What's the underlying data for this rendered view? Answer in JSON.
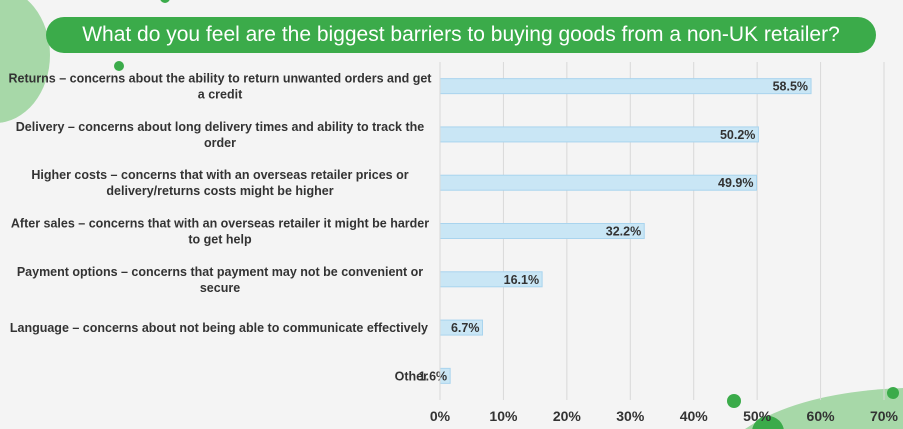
{
  "title": "What do you feel are the biggest barriers to buying goods from a non-UK retailer?",
  "colors": {
    "title_bg": "#3bab4a",
    "bar_fill": "#c9e6f5",
    "bar_stroke": "#a9d4ee",
    "gridline": "#d9d9d9",
    "decor_green": "#3bab4a",
    "decor_light": "#a7d8a8"
  },
  "chart_data": {
    "type": "bar",
    "orientation": "horizontal",
    "title": "What do you feel are the biggest barriers to buying goods from a non-UK retailer?",
    "categories": [
      [
        "Returns – concerns about the ability to return unwanted orders and get",
        "a credit"
      ],
      [
        "Delivery – concerns about long delivery times and ability to track the",
        "order"
      ],
      [
        "Higher costs – concerns that with an overseas retailer prices or",
        "delivery/returns costs might be higher"
      ],
      [
        "After sales – concerns that with an overseas retailer it might be harder",
        "to get help"
      ],
      [
        "Payment options – concerns that payment may not be convenient or",
        "secure"
      ],
      [
        "Language – concerns about not being able to communicate effectively"
      ],
      [
        "Other"
      ]
    ],
    "values": [
      58.5,
      50.2,
      49.9,
      32.2,
      16.1,
      6.7,
      1.6
    ],
    "value_labels": [
      "58.5%",
      "50.2%",
      "49.9%",
      "32.2%",
      "16.1%",
      "6.7%",
      "1.6%"
    ],
    "x_ticks": [
      0,
      10,
      20,
      30,
      40,
      50,
      60,
      70
    ],
    "x_tick_labels": [
      "0%",
      "10%",
      "20%",
      "30%",
      "40%",
      "50%",
      "60%",
      "70%"
    ],
    "xlim": [
      0,
      70
    ],
    "xlabel": "",
    "ylabel": "",
    "grid": true
  }
}
